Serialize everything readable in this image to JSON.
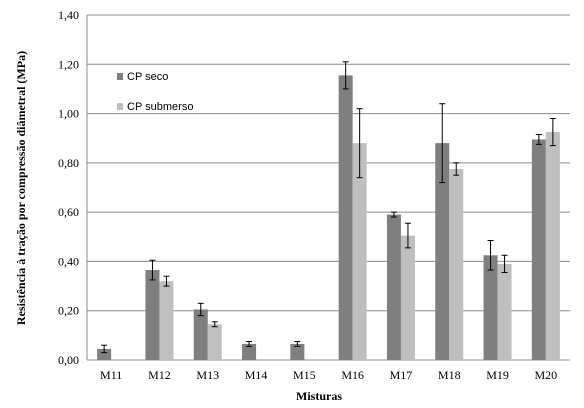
{
  "chart_data": {
    "type": "bar",
    "title": "",
    "xlabel": "Misturas",
    "ylabel": "Resistência à tração por compressão diâmetral  (MPa)",
    "ylim": [
      0,
      1.4
    ],
    "yticks": [
      "0,00",
      "0,20",
      "0,40",
      "0,60",
      "0,80",
      "1,00",
      "1,20",
      "1,40"
    ],
    "grid": true,
    "legend_position": "top-left",
    "categories": [
      "M11",
      "M12",
      "M13",
      "M14",
      "M15",
      "M16",
      "M17",
      "M18",
      "M19",
      "M20"
    ],
    "series": [
      {
        "name": "CP seco",
        "color": "#7f7f7f",
        "values": [
          0.045,
          0.365,
          0.205,
          0.065,
          0.065,
          1.155,
          0.59,
          0.88,
          0.425,
          0.895
        ],
        "errors": [
          0.015,
          0.04,
          0.025,
          0.01,
          0.01,
          0.055,
          0.01,
          0.16,
          0.06,
          0.02
        ]
      },
      {
        "name": "CP submerso",
        "color": "#bfbfbf",
        "values": [
          null,
          0.32,
          0.145,
          null,
          null,
          0.88,
          0.505,
          0.775,
          0.39,
          0.925
        ],
        "errors": [
          null,
          0.02,
          0.01,
          null,
          null,
          0.14,
          0.05,
          0.025,
          0.035,
          0.055
        ]
      }
    ]
  }
}
